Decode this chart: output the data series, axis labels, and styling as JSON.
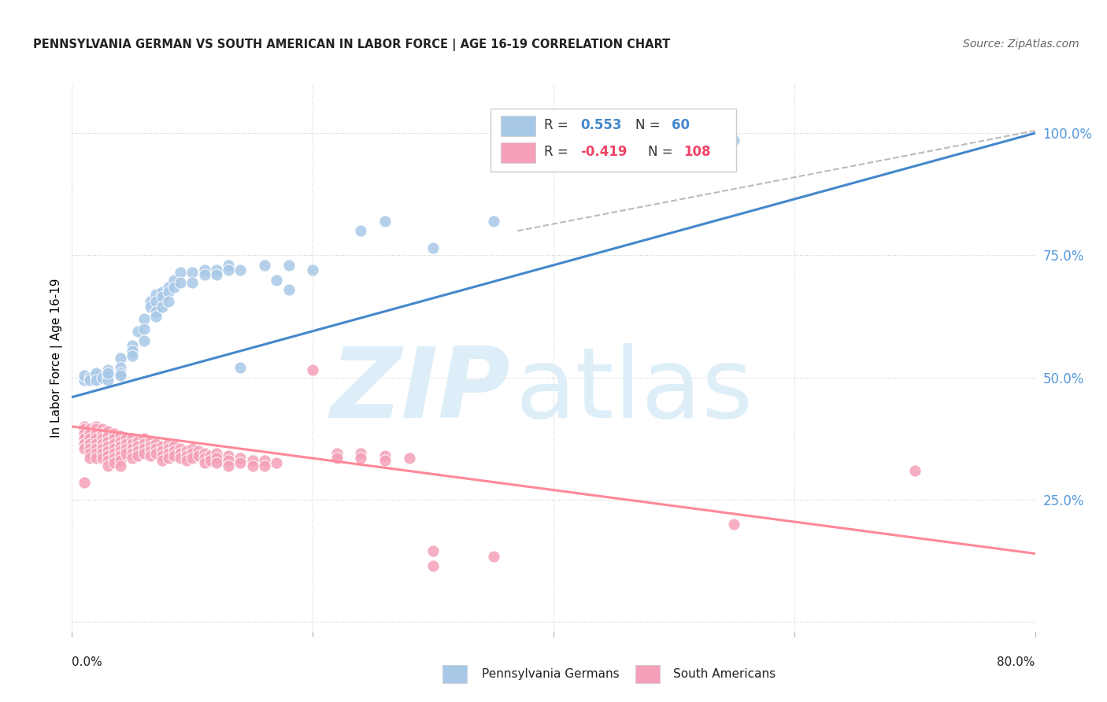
{
  "title": "PENNSYLVANIA GERMAN VS SOUTH AMERICAN IN LABOR FORCE | AGE 16-19 CORRELATION CHART",
  "source": "Source: ZipAtlas.com",
  "ylabel": "In Labor Force | Age 16-19",
  "xlim": [
    0.0,
    0.8
  ],
  "ylim": [
    -0.02,
    1.1
  ],
  "y_ticks_right": [
    0.0,
    0.25,
    0.5,
    0.75,
    1.0
  ],
  "y_tick_labels_right": [
    "",
    "25.0%",
    "50.0%",
    "75.0%",
    "100.0%"
  ],
  "blue_color": "#A8C8E8",
  "pink_color": "#F4A0B8",
  "blue_line_color": "#4488CC",
  "pink_line_color": "#FF8899",
  "dashed_line_color": "#BBBBBB",
  "bg_color": "#FFFFFF",
  "watermark_color": "#DDEEF8",
  "blue_scatter": [
    [
      0.01,
      0.495
    ],
    [
      0.01,
      0.505
    ],
    [
      0.015,
      0.5
    ],
    [
      0.015,
      0.495
    ],
    [
      0.02,
      0.5
    ],
    [
      0.02,
      0.505
    ],
    [
      0.02,
      0.51
    ],
    [
      0.02,
      0.495
    ],
    [
      0.025,
      0.5
    ],
    [
      0.03,
      0.515
    ],
    [
      0.03,
      0.505
    ],
    [
      0.03,
      0.495
    ],
    [
      0.03,
      0.51
    ],
    [
      0.04,
      0.54
    ],
    [
      0.04,
      0.52
    ],
    [
      0.04,
      0.51
    ],
    [
      0.04,
      0.505
    ],
    [
      0.05,
      0.565
    ],
    [
      0.05,
      0.555
    ],
    [
      0.05,
      0.545
    ],
    [
      0.055,
      0.595
    ],
    [
      0.06,
      0.62
    ],
    [
      0.06,
      0.6
    ],
    [
      0.06,
      0.575
    ],
    [
      0.065,
      0.655
    ],
    [
      0.065,
      0.645
    ],
    [
      0.07,
      0.67
    ],
    [
      0.07,
      0.655
    ],
    [
      0.07,
      0.635
    ],
    [
      0.07,
      0.625
    ],
    [
      0.075,
      0.675
    ],
    [
      0.075,
      0.665
    ],
    [
      0.075,
      0.645
    ],
    [
      0.08,
      0.685
    ],
    [
      0.08,
      0.675
    ],
    [
      0.08,
      0.655
    ],
    [
      0.085,
      0.7
    ],
    [
      0.085,
      0.685
    ],
    [
      0.09,
      0.715
    ],
    [
      0.09,
      0.695
    ],
    [
      0.1,
      0.715
    ],
    [
      0.1,
      0.695
    ],
    [
      0.11,
      0.72
    ],
    [
      0.11,
      0.71
    ],
    [
      0.12,
      0.72
    ],
    [
      0.12,
      0.71
    ],
    [
      0.13,
      0.73
    ],
    [
      0.13,
      0.72
    ],
    [
      0.14,
      0.52
    ],
    [
      0.14,
      0.72
    ],
    [
      0.16,
      0.73
    ],
    [
      0.17,
      0.7
    ],
    [
      0.18,
      0.73
    ],
    [
      0.18,
      0.68
    ],
    [
      0.2,
      0.72
    ],
    [
      0.24,
      0.8
    ],
    [
      0.26,
      0.82
    ],
    [
      0.3,
      0.765
    ],
    [
      0.35,
      0.82
    ],
    [
      0.55,
      0.985
    ]
  ],
  "pink_scatter": [
    [
      0.01,
      0.4
    ],
    [
      0.01,
      0.395
    ],
    [
      0.01,
      0.385
    ],
    [
      0.01,
      0.375
    ],
    [
      0.01,
      0.365
    ],
    [
      0.01,
      0.355
    ],
    [
      0.01,
      0.285
    ],
    [
      0.015,
      0.395
    ],
    [
      0.015,
      0.385
    ],
    [
      0.015,
      0.375
    ],
    [
      0.015,
      0.365
    ],
    [
      0.015,
      0.355
    ],
    [
      0.015,
      0.345
    ],
    [
      0.015,
      0.335
    ],
    [
      0.02,
      0.4
    ],
    [
      0.02,
      0.395
    ],
    [
      0.02,
      0.385
    ],
    [
      0.02,
      0.375
    ],
    [
      0.02,
      0.365
    ],
    [
      0.02,
      0.355
    ],
    [
      0.02,
      0.345
    ],
    [
      0.02,
      0.335
    ],
    [
      0.025,
      0.395
    ],
    [
      0.025,
      0.385
    ],
    [
      0.025,
      0.375
    ],
    [
      0.025,
      0.365
    ],
    [
      0.025,
      0.355
    ],
    [
      0.025,
      0.345
    ],
    [
      0.025,
      0.335
    ],
    [
      0.03,
      0.39
    ],
    [
      0.03,
      0.38
    ],
    [
      0.03,
      0.37
    ],
    [
      0.03,
      0.36
    ],
    [
      0.03,
      0.35
    ],
    [
      0.03,
      0.34
    ],
    [
      0.03,
      0.33
    ],
    [
      0.03,
      0.32
    ],
    [
      0.035,
      0.385
    ],
    [
      0.035,
      0.375
    ],
    [
      0.035,
      0.365
    ],
    [
      0.035,
      0.355
    ],
    [
      0.035,
      0.345
    ],
    [
      0.035,
      0.335
    ],
    [
      0.035,
      0.325
    ],
    [
      0.04,
      0.38
    ],
    [
      0.04,
      0.37
    ],
    [
      0.04,
      0.36
    ],
    [
      0.04,
      0.35
    ],
    [
      0.04,
      0.34
    ],
    [
      0.04,
      0.33
    ],
    [
      0.04,
      0.32
    ],
    [
      0.045,
      0.375
    ],
    [
      0.045,
      0.365
    ],
    [
      0.045,
      0.355
    ],
    [
      0.045,
      0.345
    ],
    [
      0.05,
      0.375
    ],
    [
      0.05,
      0.365
    ],
    [
      0.05,
      0.355
    ],
    [
      0.05,
      0.345
    ],
    [
      0.05,
      0.335
    ],
    [
      0.055,
      0.37
    ],
    [
      0.055,
      0.36
    ],
    [
      0.055,
      0.35
    ],
    [
      0.055,
      0.34
    ],
    [
      0.06,
      0.375
    ],
    [
      0.06,
      0.365
    ],
    [
      0.06,
      0.355
    ],
    [
      0.06,
      0.345
    ],
    [
      0.065,
      0.37
    ],
    [
      0.065,
      0.36
    ],
    [
      0.065,
      0.35
    ],
    [
      0.065,
      0.34
    ],
    [
      0.07,
      0.365
    ],
    [
      0.07,
      0.355
    ],
    [
      0.07,
      0.345
    ],
    [
      0.075,
      0.36
    ],
    [
      0.075,
      0.35
    ],
    [
      0.075,
      0.34
    ],
    [
      0.075,
      0.33
    ],
    [
      0.08,
      0.365
    ],
    [
      0.08,
      0.355
    ],
    [
      0.08,
      0.345
    ],
    [
      0.08,
      0.335
    ],
    [
      0.085,
      0.36
    ],
    [
      0.085,
      0.35
    ],
    [
      0.085,
      0.34
    ],
    [
      0.09,
      0.355
    ],
    [
      0.09,
      0.345
    ],
    [
      0.09,
      0.335
    ],
    [
      0.095,
      0.35
    ],
    [
      0.095,
      0.34
    ],
    [
      0.095,
      0.33
    ],
    [
      0.1,
      0.355
    ],
    [
      0.1,
      0.345
    ],
    [
      0.1,
      0.335
    ],
    [
      0.105,
      0.35
    ],
    [
      0.105,
      0.34
    ],
    [
      0.11,
      0.345
    ],
    [
      0.11,
      0.335
    ],
    [
      0.11,
      0.325
    ],
    [
      0.115,
      0.34
    ],
    [
      0.115,
      0.33
    ],
    [
      0.12,
      0.345
    ],
    [
      0.12,
      0.335
    ],
    [
      0.12,
      0.325
    ],
    [
      0.13,
      0.34
    ],
    [
      0.13,
      0.33
    ],
    [
      0.13,
      0.32
    ],
    [
      0.14,
      0.335
    ],
    [
      0.14,
      0.325
    ],
    [
      0.15,
      0.33
    ],
    [
      0.15,
      0.32
    ],
    [
      0.16,
      0.33
    ],
    [
      0.16,
      0.32
    ],
    [
      0.17,
      0.325
    ],
    [
      0.2,
      0.515
    ],
    [
      0.22,
      0.345
    ],
    [
      0.22,
      0.335
    ],
    [
      0.24,
      0.345
    ],
    [
      0.24,
      0.335
    ],
    [
      0.26,
      0.34
    ],
    [
      0.26,
      0.33
    ],
    [
      0.28,
      0.335
    ],
    [
      0.3,
      0.145
    ],
    [
      0.3,
      0.115
    ],
    [
      0.35,
      0.135
    ],
    [
      0.55,
      0.2
    ],
    [
      0.7,
      0.31
    ]
  ],
  "blue_line": {
    "x0": 0.0,
    "y0": 0.46,
    "x1": 0.8,
    "y1": 1.0
  },
  "pink_line": {
    "x0": 0.0,
    "y0": 0.4,
    "x1": 0.8,
    "y1": 0.14
  },
  "dashed_line": {
    "x0": 0.37,
    "y0": 0.8,
    "x1": 0.8,
    "y1": 1.005
  }
}
